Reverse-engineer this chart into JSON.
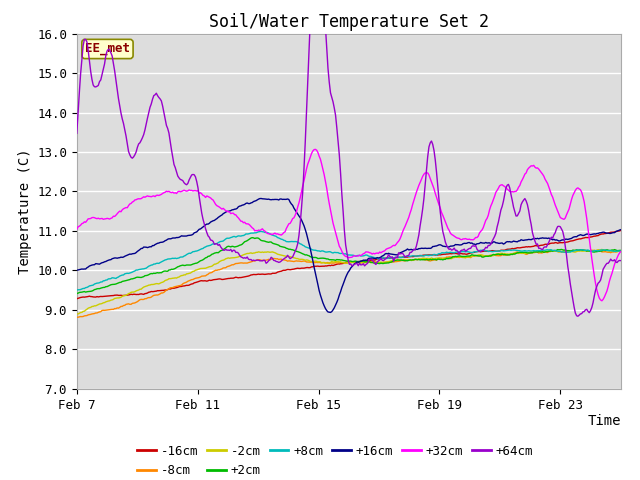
{
  "title": "Soil/Water Temperature Set 2",
  "xlabel": "Time",
  "ylabel": "Temperature (C)",
  "ylim": [
    7.0,
    16.0
  ],
  "yticks": [
    7.0,
    8.0,
    9.0,
    10.0,
    11.0,
    12.0,
    13.0,
    14.0,
    15.0,
    16.0
  ],
  "xtick_labels": [
    "Feb 7",
    "Feb 11",
    "Feb 15",
    "Feb 19",
    "Feb 23"
  ],
  "xtick_positions": [
    0,
    4,
    8,
    12,
    16
  ],
  "n_days": 18,
  "series_colors": {
    "-16cm": "#cc0000",
    "-8cm": "#ff8800",
    "-2cm": "#cccc00",
    "+2cm": "#00bb00",
    "+8cm": "#00bbbb",
    "+16cm": "#000088",
    "+32cm": "#ff00ff",
    "+64cm": "#9900cc"
  },
  "watermark_text": "EE_met",
  "watermark_bg": "#ffffcc",
  "watermark_border": "#888800",
  "plot_bg": "#dddddd",
  "grid_color": "#ffffff",
  "title_fontsize": 12,
  "axis_fontsize": 10,
  "tick_fontsize": 9,
  "legend_fontsize": 9
}
